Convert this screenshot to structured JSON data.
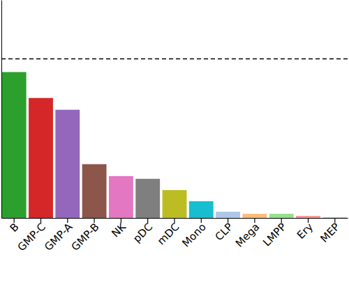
{
  "chart_data": {
    "type": "bar",
    "categories": [
      "B",
      "GMP-C",
      "GMP-A",
      "GMP-B",
      "NK",
      "pDC",
      "mDC",
      "Mono",
      "CLP",
      "Mega",
      "LMPP",
      "Ery",
      "MEP"
    ],
    "values": [
      91.7,
      75.4,
      68.0,
      33.8,
      26.3,
      24.6,
      17.5,
      10.5,
      3.9,
      2.6,
      2.6,
      1.3,
      0.4
    ],
    "colors": [
      "#2ca02c",
      "#d62728",
      "#9467bd",
      "#8c564b",
      "#e377c2",
      "#7f7f7f",
      "#bcbd22",
      "#17becf",
      "#aec7e8",
      "#ffbb78",
      "#98df8a",
      "#ff9896",
      "#c5b0d5"
    ],
    "reference_line": 100,
    "ylim": [
      0,
      137
    ],
    "yticks": [],
    "tick_labels": "x"
  }
}
